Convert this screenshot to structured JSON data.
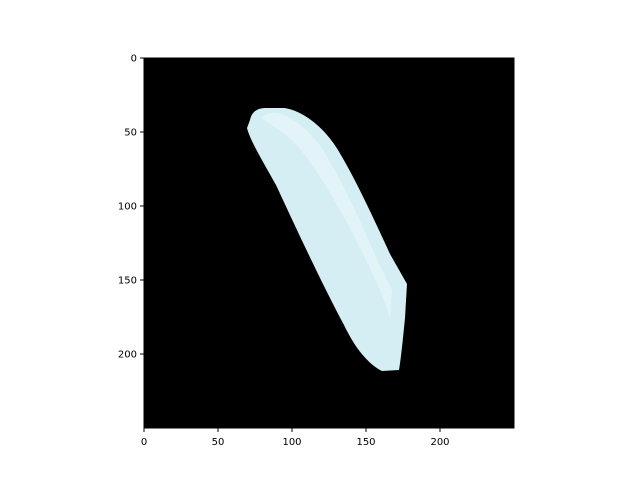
{
  "figure": {
    "background": "#ffffff",
    "image_background": "#000000",
    "object_color": "#d4eef4",
    "object_highlight": "#eaf7fa"
  },
  "axes": {
    "xlim": [
      0,
      250
    ],
    "ylim": [
      250,
      0
    ],
    "x_ticks": [
      {
        "value": 0,
        "label": "0"
      },
      {
        "value": 50,
        "label": "50"
      },
      {
        "value": 100,
        "label": "100"
      },
      {
        "value": 150,
        "label": "150"
      },
      {
        "value": 200,
        "label": "200"
      }
    ],
    "y_ticks": [
      {
        "value": 0,
        "label": "0"
      },
      {
        "value": 50,
        "label": "50"
      },
      {
        "value": 100,
        "label": "100"
      },
      {
        "value": 150,
        "label": "150"
      },
      {
        "value": 200,
        "label": "200"
      }
    ]
  }
}
